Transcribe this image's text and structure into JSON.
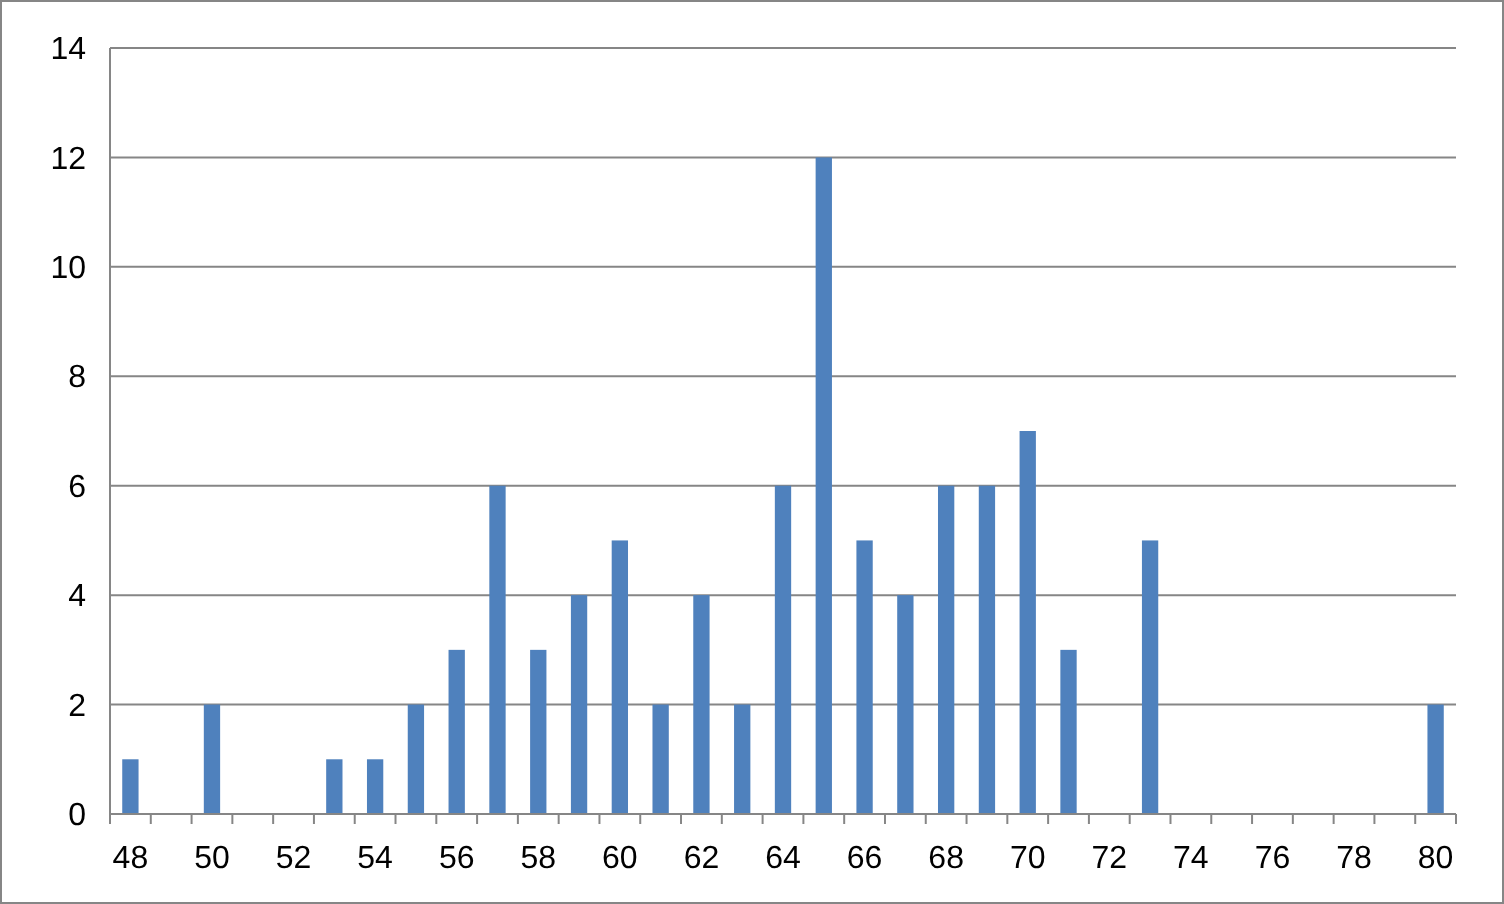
{
  "chart_data": {
    "type": "bar",
    "categories": [
      "48",
      null,
      "50",
      null,
      "52",
      null,
      "54",
      null,
      "56",
      null,
      "58",
      null,
      "60",
      null,
      "62",
      null,
      "64",
      null,
      "66",
      null,
      "68",
      null,
      "70",
      null,
      "72",
      null,
      "74",
      null,
      "76",
      null,
      "78",
      null,
      "80"
    ],
    "values": [
      1,
      0,
      2,
      0,
      0,
      1,
      1,
      2,
      3,
      6,
      3,
      4,
      5,
      2,
      4,
      2,
      6,
      12,
      5,
      4,
      6,
      6,
      7,
      3,
      0,
      5,
      0,
      0,
      0,
      0,
      0,
      0,
      2
    ],
    "color": "#4f81bd",
    "ylim": [
      0,
      14
    ],
    "yticks": [
      0,
      2,
      4,
      6,
      8,
      10,
      12,
      14
    ],
    "grid": "y"
  }
}
